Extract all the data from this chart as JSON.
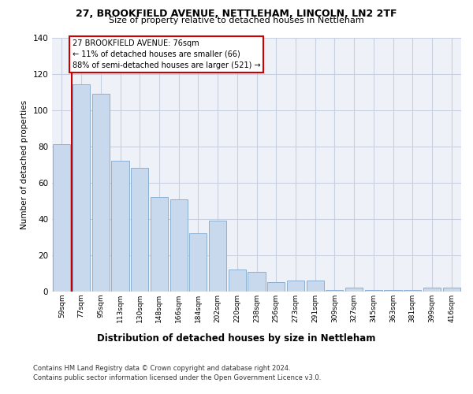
{
  "title1": "27, BROOKFIELD AVENUE, NETTLEHAM, LINCOLN, LN2 2TF",
  "title2": "Size of property relative to detached houses in Nettleham",
  "xlabel": "Distribution of detached houses by size in Nettleham",
  "ylabel": "Number of detached properties",
  "categories": [
    "59sqm",
    "77sqm",
    "95sqm",
    "113sqm",
    "130sqm",
    "148sqm",
    "166sqm",
    "184sqm",
    "202sqm",
    "220sqm",
    "238sqm",
    "256sqm",
    "273sqm",
    "291sqm",
    "309sqm",
    "327sqm",
    "345sqm",
    "363sqm",
    "381sqm",
    "399sqm",
    "416sqm"
  ],
  "values": [
    81,
    114,
    109,
    72,
    68,
    52,
    51,
    32,
    39,
    12,
    11,
    5,
    6,
    6,
    1,
    2,
    1,
    1,
    1,
    2,
    2
  ],
  "bar_color": "#c9d9ed",
  "bar_edge_color": "#7fa8cc",
  "marker_line_color": "#cc0000",
  "annotation_text": "27 BROOKFIELD AVENUE: 76sqm\n← 11% of detached houses are smaller (66)\n88% of semi-detached houses are larger (521) →",
  "annotation_box_facecolor": "#ffffff",
  "annotation_box_edgecolor": "#cc0000",
  "ylim": [
    0,
    140
  ],
  "yticks": [
    0,
    20,
    40,
    60,
    80,
    100,
    120,
    140
  ],
  "footer1": "Contains HM Land Registry data © Crown copyright and database right 2024.",
  "footer2": "Contains public sector information licensed under the Open Government Licence v3.0.",
  "bg_color": "#eef2f8",
  "grid_color": "#c8d0e0",
  "title1_fontsize": 9.0,
  "title2_fontsize": 8.0,
  "ylabel_fontsize": 7.5,
  "xlabel_fontsize": 8.5,
  "tick_fontsize": 6.5,
  "ytick_fontsize": 7.5,
  "footer_fontsize": 6.0,
  "annotation_fontsize": 7.0
}
